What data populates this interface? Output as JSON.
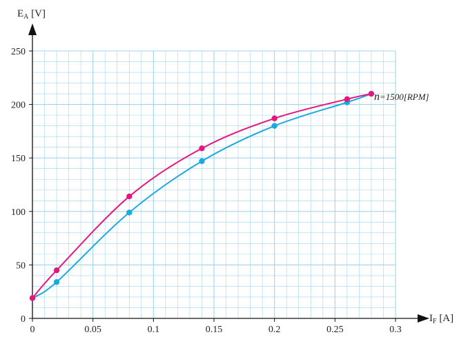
{
  "chart_data": {
    "type": "line",
    "x_axis": {
      "label_main": "I",
      "label_sub": "F",
      "label_unit": " [A]",
      "range": [
        0,
        0.3
      ],
      "ticks": [
        "0",
        "0.05",
        "0.1",
        "0.15",
        "0.2",
        "0.25",
        "0.3"
      ],
      "tick_values": [
        0,
        0.05,
        0.1,
        0.15,
        0.2,
        0.25,
        0.3
      ],
      "minor_step": 0.01
    },
    "y_axis": {
      "label_main": "E",
      "label_sub": "A",
      "label_unit": " [V]",
      "range": [
        0,
        250
      ],
      "ticks": [
        "0",
        "50",
        "100",
        "150",
        "200",
        "250"
      ],
      "tick_values": [
        0,
        50,
        100,
        150,
        200,
        250
      ],
      "minor_step": 10
    },
    "grid": true,
    "series": [
      {
        "color": "#e6167e",
        "x": [
          0,
          0.02,
          0.08,
          0.14,
          0.2,
          0.26,
          0.28
        ],
        "y": [
          19,
          45,
          114,
          159,
          187,
          205,
          210
        ]
      },
      {
        "color": "#1ba9e1",
        "x": [
          0,
          0.02,
          0.08,
          0.14,
          0.2,
          0.26,
          0.28
        ],
        "y": [
          19,
          34,
          99,
          147,
          180,
          202,
          210
        ]
      }
    ],
    "annotation": {
      "symbol": "n",
      "text": "=1500[RPM]"
    }
  },
  "colors": {
    "grid": "#9fd3ef",
    "axis": "#111111"
  }
}
